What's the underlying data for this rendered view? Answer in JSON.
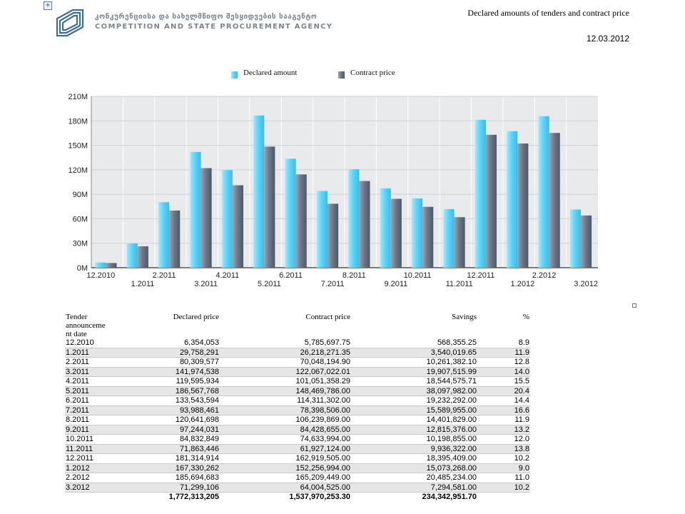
{
  "header": {
    "org_name_ge": "კონკურენციისა და სახელმწიფო შესყიდვების სააგენტო",
    "org_name_en": "COMPETITION AND STATE PROCUREMENT AGENCY",
    "report_title": "Declared  amounts of tenders and contract price",
    "report_date": "12.03.2012"
  },
  "colors": {
    "declared": "#5fd3f7",
    "contract": "#6c7889",
    "grid": "#cfd2d6",
    "plot_bg": "#e9eaec",
    "logo": "#3d6d96"
  },
  "chart_data": {
    "type": "bar",
    "categories": [
      "12.2010",
      "1.2011",
      "2.2011",
      "3.2011",
      "4.2011",
      "5.2011",
      "6.2011",
      "7.2011",
      "8.2011",
      "9.2011",
      "10.2011",
      "11.2011",
      "12.2011",
      "1.2012",
      "2.2012",
      "3.2012"
    ],
    "series": [
      {
        "name": "Declared amount",
        "values": [
          6354053,
          29758291,
          80309577,
          141974538,
          119595934,
          186567768,
          133543594,
          93988461,
          120641698,
          97244031,
          84832849,
          71863446,
          181314914,
          167330262,
          185694683,
          71299106
        ]
      },
      {
        "name": "Contract price",
        "values": [
          5785697.75,
          26218271.35,
          70048194.9,
          122067022.01,
          101051358.29,
          148469786.0,
          114311302.0,
          78398506.0,
          106239869.0,
          84428655.0,
          74633994.0,
          61927124.0,
          162919505.0,
          152256994.0,
          165209449.0,
          64004525.0
        ]
      }
    ],
    "yticks": [
      "0M",
      "30M",
      "60M",
      "90M",
      "120M",
      "150M",
      "180M",
      "210M"
    ],
    "ylim": [
      0,
      210000000
    ],
    "legend": "top-center",
    "grid": true
  },
  "table": {
    "headers": [
      "Tender announcement date",
      "Declared price",
      "Contract price",
      "Savings",
      "%"
    ],
    "header_lines": [
      "Tender",
      "announceme",
      "nt date"
    ],
    "rows": [
      [
        "12.2010",
        "6,354,053",
        "5,785,697.75",
        "568,355.25",
        "8.9"
      ],
      [
        "1.2011",
        "29,758,291",
        "26,218,271.35",
        "3,540,019.65",
        "11.9"
      ],
      [
        "2.2011",
        "80,309,577",
        "70,048,194.90",
        "10,261,382.10",
        "12.8"
      ],
      [
        "3.2011",
        "141,974,538",
        "122,067,022.01",
        "19,907,515.99",
        "14.0"
      ],
      [
        "4.2011",
        "119,595,934",
        "101,051,358.29",
        "18,544,575.71",
        "15.5"
      ],
      [
        "5.2011",
        "186,567,768",
        "148,469,786.00",
        "38,097,982.00",
        "20.4"
      ],
      [
        "6.2011",
        "133,543,594",
        "114,311,302.00",
        "19,232,292.00",
        "14.4"
      ],
      [
        "7.2011",
        "93,988,461",
        "78,398,506.00",
        "15,589,955.00",
        "16.6"
      ],
      [
        "8.2011",
        "120,641,698",
        "106,239,869.00",
        "14,401,829.00",
        "11.9"
      ],
      [
        "9.2011",
        "97,244,031",
        "84,428,655.00",
        "12,815,376.00",
        "13.2"
      ],
      [
        "10.2011",
        "84,832,849",
        "74,633,994.00",
        "10,198,855.00",
        "12.0"
      ],
      [
        "11.2011",
        "71,863,446",
        "61,927,124.00",
        "9,936,322.00",
        "13.8"
      ],
      [
        "12.2011",
        "181,314,914",
        "162,919,505.00",
        "18,395,409.00",
        "10.2"
      ],
      [
        "1.2012",
        "167,330,262",
        "152,256,994.00",
        "15,073,268.00",
        "9.0"
      ],
      [
        "2.2012",
        "185,694,683",
        "165,209,449.00",
        "20,485,234.00",
        "11.0"
      ],
      [
        "3.2012",
        "71,299,106",
        "64,004,525.00",
        "7,294,581.00",
        "10.2"
      ]
    ],
    "totals": [
      "",
      "1,772,313,205",
      "1,537,970,253.30",
      "234,342,951.70",
      ""
    ]
  },
  "icons": {
    "expand": "+",
    "logo": "agency-logo-icon",
    "small_box": "anchor-box-icon"
  }
}
